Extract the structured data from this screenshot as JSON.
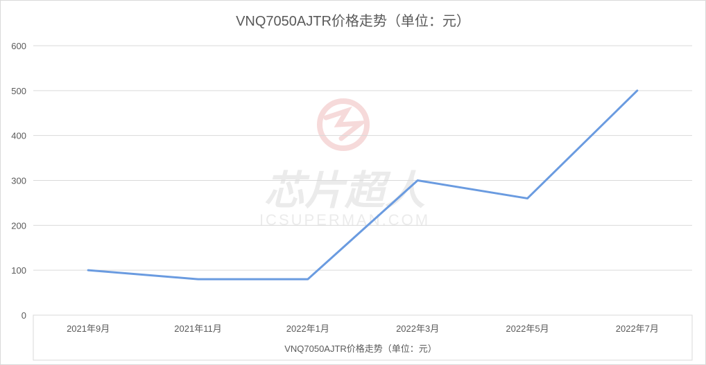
{
  "chart_data": {
    "type": "line",
    "title": "VNQ7050AJTR价格走势（单位：元）",
    "xlabel": "VNQ7050AJTR价格走势（单位：元）",
    "ylabel": "",
    "categories": [
      "2021年9月",
      "2021年11月",
      "2022年1月",
      "2022年3月",
      "2022年5月",
      "2022年7月"
    ],
    "series": [
      {
        "values": [
          100,
          80,
          80,
          300,
          260,
          500
        ]
      }
    ],
    "ylim": [
      0,
      600
    ],
    "yticks": [
      0,
      100,
      200,
      300,
      400,
      500,
      600
    ],
    "grid": true,
    "line_color": "#6a9be0"
  },
  "watermark": {
    "logo_text": "芯片超人",
    "url_text": "ICSUPERMAN.COM"
  }
}
